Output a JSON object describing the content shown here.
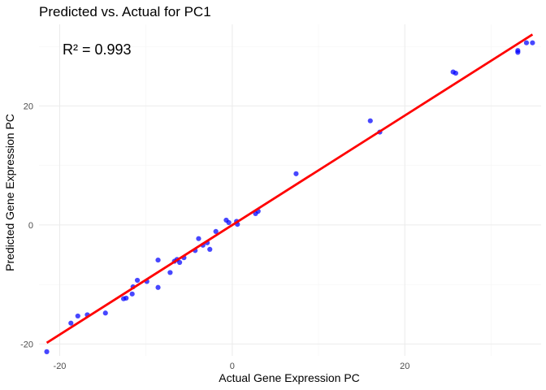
{
  "chart_data": {
    "type": "scatter",
    "title": "Predicted vs. Actual for PC1",
    "xlabel": "Actual Gene Expression PC",
    "ylabel": "Predicted Gene Expression PC",
    "annotation": "R² = 0.993",
    "xlim": [
      -22.4,
      35.8
    ],
    "ylim": [
      -22.0,
      33.7
    ],
    "x_ticks": [
      -20,
      0,
      20
    ],
    "y_ticks": [
      -20,
      0,
      20
    ],
    "x_tick_labels": [
      "-20",
      "0",
      "20"
    ],
    "y_tick_labels": [
      "-20",
      "0",
      "20"
    ],
    "x_minor": [
      -10,
      10,
      30
    ],
    "y_minor": [
      -10,
      10,
      30
    ],
    "grid": true,
    "point_color": "#0000ff",
    "line_color": "#ff0000",
    "points": [
      {
        "x": -21.5,
        "y": -21.3
      },
      {
        "x": -18.7,
        "y": -16.5
      },
      {
        "x": -17.9,
        "y": -15.3
      },
      {
        "x": -16.8,
        "y": -15.1
      },
      {
        "x": -14.7,
        "y": -14.8
      },
      {
        "x": -12.6,
        "y": -12.4
      },
      {
        "x": -12.3,
        "y": -12.3
      },
      {
        "x": -11.6,
        "y": -11.6
      },
      {
        "x": -11.5,
        "y": -10.4
      },
      {
        "x": -11.0,
        "y": -9.3
      },
      {
        "x": -9.9,
        "y": -9.5
      },
      {
        "x": -8.6,
        "y": -10.5
      },
      {
        "x": -8.6,
        "y": -5.9
      },
      {
        "x": -7.2,
        "y": -8.0
      },
      {
        "x": -6.7,
        "y": -6.1
      },
      {
        "x": -6.4,
        "y": -5.8
      },
      {
        "x": -6.1,
        "y": -6.3
      },
      {
        "x": -5.6,
        "y": -5.5
      },
      {
        "x": -4.3,
        "y": -4.3
      },
      {
        "x": -3.9,
        "y": -2.3
      },
      {
        "x": -3.4,
        "y": -3.4
      },
      {
        "x": -2.9,
        "y": -3.0
      },
      {
        "x": -2.6,
        "y": -4.1
      },
      {
        "x": -1.9,
        "y": -1.1
      },
      {
        "x": -0.7,
        "y": 0.8
      },
      {
        "x": -0.4,
        "y": 0.4
      },
      {
        "x": 0.5,
        "y": 0.6
      },
      {
        "x": 0.6,
        "y": 0.1
      },
      {
        "x": 2.7,
        "y": 1.9
      },
      {
        "x": 3.0,
        "y": 2.3
      },
      {
        "x": 7.4,
        "y": 8.6
      },
      {
        "x": 16.0,
        "y": 17.5
      },
      {
        "x": 17.1,
        "y": 15.6
      },
      {
        "x": 25.6,
        "y": 25.7
      },
      {
        "x": 25.9,
        "y": 25.5
      },
      {
        "x": 33.1,
        "y": 29.0
      },
      {
        "x": 33.1,
        "y": 29.3
      },
      {
        "x": 34.1,
        "y": 30.6
      },
      {
        "x": 34.8,
        "y": 30.6
      }
    ],
    "fit_line": {
      "x": [
        -21.5,
        34.8
      ],
      "y": [
        -19.8,
        32.0
      ]
    }
  }
}
